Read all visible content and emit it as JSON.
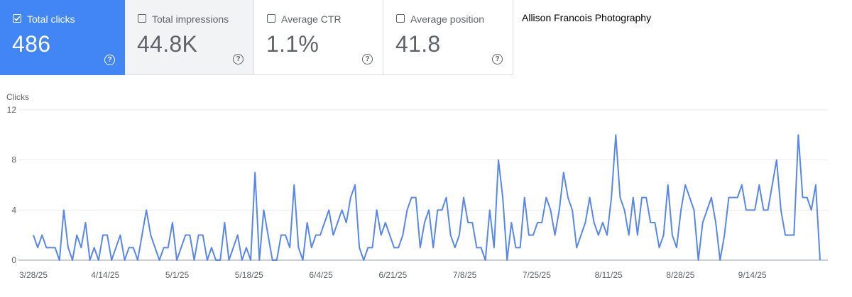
{
  "cards": [
    {
      "label": "Total clicks",
      "value": "486",
      "checked": true
    },
    {
      "label": "Total impressions",
      "value": "44.8K",
      "checked": false
    },
    {
      "label": "Average CTR",
      "value": "1.1%",
      "checked": false
    },
    {
      "label": "Average position",
      "value": "41.8",
      "checked": false
    }
  ],
  "help_glyph": "?",
  "site_name": "Allison Francois Photography",
  "colors": {
    "accent": "#4285f4",
    "line": "#5887e8",
    "grid": "#e8eaed"
  },
  "chart_data": {
    "type": "line",
    "ylabel": "Clicks",
    "ylim": [
      0,
      12
    ],
    "yticks": [
      0,
      4,
      8,
      12
    ],
    "x_ticks": [
      "3/28/25",
      "4/14/25",
      "5/1/25",
      "5/18/25",
      "6/4/25",
      "6/21/25",
      "7/8/25",
      "7/25/25",
      "8/11/25",
      "8/28/25",
      "9/14/25"
    ],
    "x_start": "3/28/25",
    "x_end": "9/30/25",
    "grid": true,
    "series": [
      {
        "values": [
          2,
          1,
          2,
          1,
          1,
          1,
          0,
          4,
          1,
          0,
          2,
          1,
          3,
          0,
          1,
          0,
          2,
          2,
          0,
          1,
          2,
          0,
          1,
          1,
          0,
          2,
          4,
          2,
          1,
          0,
          1,
          1,
          3,
          0,
          1,
          2,
          2,
          0,
          2,
          2,
          0,
          1,
          0,
          0,
          3,
          0,
          1,
          2,
          0,
          1,
          0,
          7,
          0,
          4,
          2,
          0,
          0,
          2,
          2,
          1,
          6,
          1,
          0,
          3,
          1,
          2,
          2,
          3,
          4,
          2,
          3,
          4,
          3,
          5,
          6,
          1,
          0,
          1,
          1,
          4,
          2,
          3,
          2,
          1,
          1,
          2,
          4,
          5,
          5,
          1,
          3,
          4,
          1,
          4,
          4,
          5,
          2,
          1,
          2,
          5,
          3,
          3,
          1,
          1,
          0,
          4,
          1,
          8,
          5,
          0,
          3,
          1,
          1,
          5,
          2,
          2,
          3,
          3,
          5,
          4,
          2,
          4,
          7,
          5,
          4,
          1,
          2,
          3,
          5,
          3,
          2,
          3,
          2,
          5,
          10,
          5,
          4,
          2,
          5,
          2,
          5,
          5,
          3,
          3,
          1,
          2,
          6,
          2,
          1,
          4,
          6,
          5,
          4,
          0,
          3,
          4,
          5,
          3,
          0,
          2,
          5,
          5,
          5,
          6,
          4,
          4,
          4,
          6,
          4,
          4,
          6,
          8,
          4,
          2,
          2,
          2,
          10,
          5,
          5,
          4,
          6,
          0
        ]
      }
    ]
  }
}
